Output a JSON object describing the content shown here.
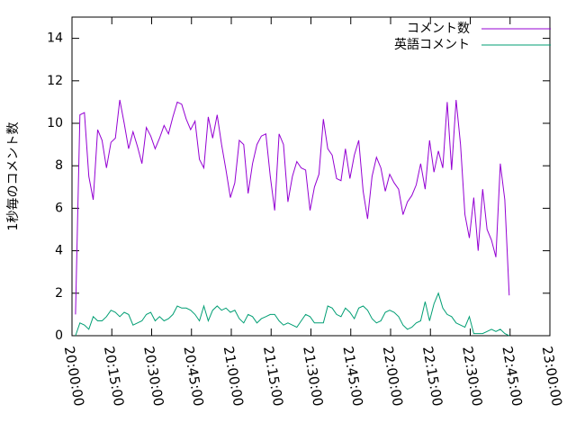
{
  "chart_data": {
    "type": "line",
    "y_label": "1秒毎のコメント数",
    "x": [
      "20:01:20",
      "20:03:00",
      "20:04:40",
      "20:06:20",
      "20:08:00",
      "20:09:40",
      "20:11:20",
      "20:13:00",
      "20:14:40",
      "20:16:20",
      "20:18:00",
      "20:19:40",
      "20:21:20",
      "20:23:00",
      "20:24:40",
      "20:26:20",
      "20:28:00",
      "20:29:40",
      "20:31:20",
      "20:33:00",
      "20:34:40",
      "20:36:20",
      "20:38:00",
      "20:39:40",
      "20:41:20",
      "20:43:00",
      "20:44:40",
      "20:46:20",
      "20:48:00",
      "20:49:40",
      "20:51:20",
      "20:53:00",
      "20:54:40",
      "20:56:20",
      "20:58:00",
      "20:59:40",
      "21:01:20",
      "21:03:00",
      "21:04:40",
      "21:06:20",
      "21:08:00",
      "21:09:40",
      "21:11:20",
      "21:13:00",
      "21:14:40",
      "21:16:20",
      "21:18:00",
      "21:19:40",
      "21:21:20",
      "21:23:00",
      "21:24:40",
      "21:26:20",
      "21:28:00",
      "21:29:40",
      "21:31:20",
      "21:33:00",
      "21:34:40",
      "21:36:20",
      "21:38:00",
      "21:39:40",
      "21:41:20",
      "21:43:00",
      "21:44:40",
      "21:46:20",
      "21:48:00",
      "21:49:40",
      "21:51:20",
      "21:53:00",
      "21:54:40",
      "21:56:20",
      "21:58:00",
      "21:59:40",
      "22:01:20",
      "22:03:00",
      "22:04:40",
      "22:06:20",
      "22:08:00",
      "22:09:40",
      "22:11:20",
      "22:13:00",
      "22:14:40",
      "22:16:20",
      "22:18:00",
      "22:19:40",
      "22:21:20",
      "22:23:00",
      "22:24:40",
      "22:26:20",
      "22:28:00",
      "22:29:40",
      "22:31:20",
      "22:33:00",
      "22:34:40",
      "22:36:20",
      "22:38:00",
      "22:39:40",
      "22:41:20",
      "22:43:00",
      "22:44:40"
    ],
    "series": [
      {
        "name": "コメント数",
        "color": "#9400d3",
        "values": [
          1.0,
          10.4,
          10.5,
          7.5,
          6.4,
          9.7,
          9.2,
          7.9,
          9.1,
          9.3,
          11.1,
          10.0,
          8.8,
          9.6,
          8.9,
          8.1,
          9.8,
          9.4,
          8.8,
          9.3,
          9.9,
          9.5,
          10.3,
          11.0,
          10.9,
          10.2,
          9.7,
          10.1,
          8.3,
          7.9,
          10.3,
          9.3,
          10.4,
          9.0,
          7.8,
          6.5,
          7.2,
          9.2,
          9.0,
          6.7,
          8.1,
          9.0,
          9.4,
          9.5,
          7.5,
          5.9,
          9.5,
          9.0,
          6.3,
          7.5,
          8.2,
          7.9,
          7.8,
          5.9,
          7.0,
          7.6,
          10.2,
          8.8,
          8.5,
          7.4,
          7.3,
          8.8,
          7.4,
          8.5,
          9.2,
          6.8,
          5.5,
          7.5,
          8.4,
          7.9,
          6.8,
          7.6,
          7.2,
          6.9,
          5.7,
          6.3,
          6.6,
          7.1,
          8.1,
          6.9,
          9.2,
          7.7,
          8.7,
          7.9,
          11.0,
          7.8,
          11.1,
          9.0,
          5.7,
          4.6,
          6.5,
          4.0,
          6.9,
          5.0,
          4.5,
          3.7,
          8.1,
          6.4,
          1.9
        ]
      },
      {
        "name": "英語コメント",
        "color": "#009e73",
        "values": [
          0.0,
          0.6,
          0.5,
          0.3,
          0.9,
          0.7,
          0.7,
          0.9,
          1.2,
          1.1,
          0.9,
          1.1,
          1.0,
          0.5,
          0.6,
          0.7,
          1.0,
          1.1,
          0.7,
          0.9,
          0.7,
          0.8,
          1.0,
          1.4,
          1.3,
          1.3,
          1.2,
          1.0,
          0.7,
          1.4,
          0.7,
          1.2,
          1.4,
          1.2,
          1.3,
          1.1,
          1.2,
          0.8,
          0.6,
          1.0,
          0.9,
          0.6,
          0.8,
          0.9,
          1.0,
          1.0,
          0.7,
          0.5,
          0.6,
          0.5,
          0.4,
          0.7,
          1.0,
          0.9,
          0.6,
          0.6,
          0.6,
          1.4,
          1.3,
          1.0,
          0.9,
          1.3,
          1.1,
          0.8,
          1.3,
          1.4,
          1.2,
          0.8,
          0.6,
          0.7,
          1.1,
          1.2,
          1.1,
          0.9,
          0.5,
          0.3,
          0.4,
          0.6,
          0.7,
          1.6,
          0.7,
          1.5,
          2.0,
          1.3,
          1.0,
          0.9,
          0.6,
          0.5,
          0.4,
          0.9,
          0.1,
          0.1,
          0.1,
          0.2,
          0.3,
          0.2,
          0.3,
          0.1,
          0.0
        ]
      }
    ],
    "xlim": [
      "20:00:00",
      "23:00:00"
    ],
    "xticks": [
      "20:00:00",
      "20:15:00",
      "20:30:00",
      "20:45:00",
      "21:00:00",
      "21:15:00",
      "21:30:00",
      "21:45:00",
      "22:00:00",
      "22:15:00",
      "22:30:00",
      "22:45:00",
      "23:00:00"
    ],
    "ylim": [
      0,
      15
    ],
    "yticks": [
      0,
      2,
      4,
      6,
      8,
      10,
      12,
      14
    ],
    "legend": "top-right"
  }
}
